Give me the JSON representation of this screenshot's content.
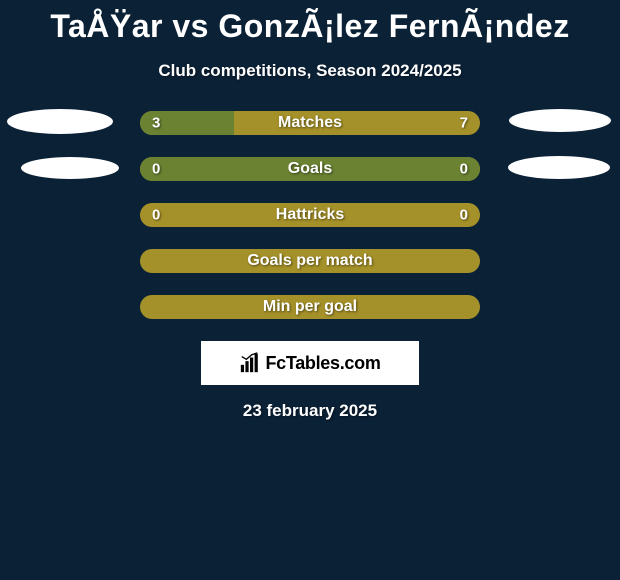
{
  "title": "TaÅŸar vs GonzÃ¡lez FernÃ¡ndez",
  "subtitle": "Club competitions, Season 2024/2025",
  "date": "23 february 2025",
  "logo_text": "FcTables.com",
  "colors": {
    "background": "#0b2136",
    "bar_bg": "#a59129",
    "bar_left_fill": "#6a8232",
    "text": "#ffffff",
    "logo_bg": "#ffffff",
    "logo_text": "#000000"
  },
  "bars": [
    {
      "label": "Matches",
      "left_value": "3",
      "right_value": "7",
      "left_pct": 27.5,
      "show_values": true
    },
    {
      "label": "Goals",
      "left_value": "0",
      "right_value": "0",
      "left_pct": 100,
      "show_values": true
    },
    {
      "label": "Hattricks",
      "left_value": "0",
      "right_value": "0",
      "left_pct": 0,
      "show_values": true
    },
    {
      "label": "Goals per match",
      "left_value": "",
      "right_value": "",
      "left_pct": 0,
      "show_values": false
    },
    {
      "label": "Min per goal",
      "left_value": "",
      "right_value": "",
      "left_pct": 0,
      "show_values": false
    }
  ],
  "ellipses": [
    {
      "class": "ellipse-1"
    },
    {
      "class": "ellipse-2"
    },
    {
      "class": "ellipse-3"
    },
    {
      "class": "ellipse-4"
    }
  ]
}
